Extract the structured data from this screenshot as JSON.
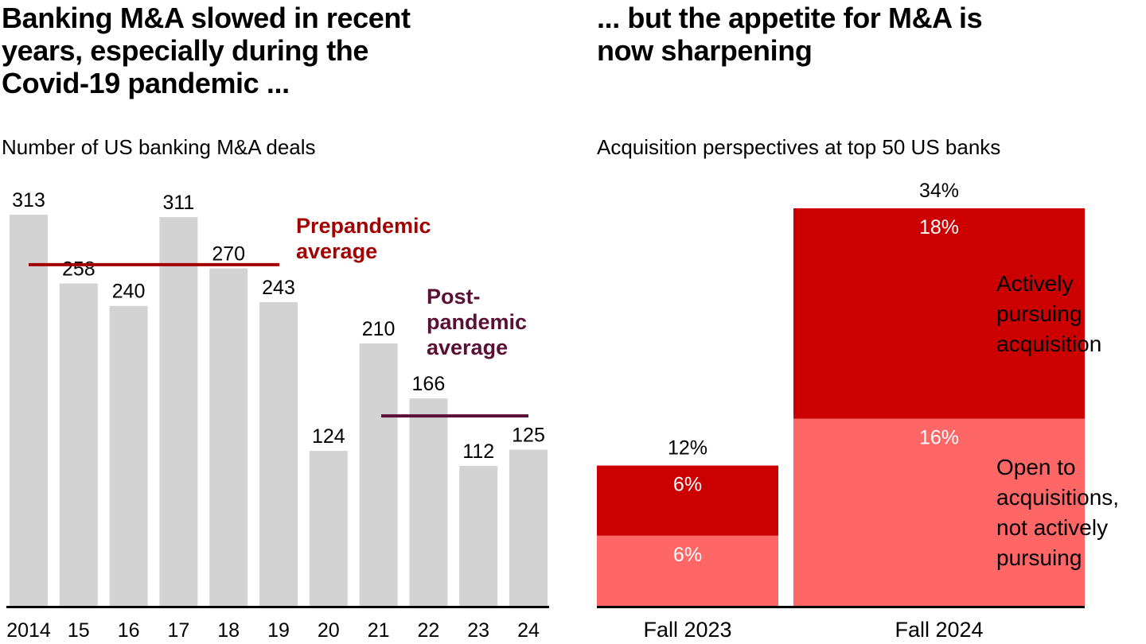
{
  "left": {
    "title": "Banking M&A slowed in recent years, especially during the Covid-19 pandemic ...",
    "title_lines": [
      "Banking M&A slowed in recent",
      "years, especially during the",
      "Covid-19 pandemic ..."
    ],
    "subtitle": "Number of US banking M&A deals"
  },
  "right": {
    "title": "... but the appetite for M&A is now sharpening",
    "title_lines": [
      "... but the appetite for M&A is",
      "now sharpening"
    ],
    "subtitle": "Acquisition perspectives at top 50 US banks"
  },
  "colors": {
    "bar_gray": "#d3d3d3",
    "prepandemic": "#a30000",
    "postpandemic": "#5a1034",
    "active": "#cc0000",
    "open": "#ff6666",
    "axis": "#000000",
    "label_white": "#ffffff"
  },
  "chart_data": [
    {
      "type": "bar",
      "title": "Number of US banking M&A deals",
      "categories": [
        "2014",
        "15",
        "16",
        "17",
        "18",
        "19",
        "20",
        "21",
        "22",
        "23",
        "24"
      ],
      "values": [
        313,
        258,
        240,
        311,
        270,
        243,
        124,
        210,
        166,
        112,
        125
      ],
      "xlabel": "",
      "ylabel": "",
      "ylim": [
        0,
        313
      ],
      "grid": false,
      "reference_lines": [
        {
          "name": "Prepandemic average",
          "label_lines": [
            "Prepandemic",
            "average"
          ],
          "value": 273,
          "from_index": 0,
          "to_index": 5
        },
        {
          "name": "Post-pandemic average",
          "label_lines": [
            "Post-",
            "pandemic",
            "average"
          ],
          "value": 152,
          "from_index": 7,
          "to_index": 10
        }
      ]
    },
    {
      "type": "bar",
      "stacked": true,
      "title": "Acquisition perspectives at top 50 US banks",
      "categories": [
        "Fall 2023",
        "Fall 2024"
      ],
      "series": [
        {
          "name": "Open to acquisitions, not actively pursuing",
          "label_lines": [
            "Open to",
            "acquisitions,",
            "not actively",
            "pursuing"
          ],
          "values": [
            6,
            16
          ],
          "unit": "%"
        },
        {
          "name": "Actively pursuing acquisition",
          "label_lines": [
            "Actively",
            "pursuing",
            "acquisition"
          ],
          "values": [
            6,
            18
          ],
          "unit": "%"
        }
      ],
      "totals": [
        12,
        34
      ],
      "legend": "right",
      "ylim": [
        0,
        34
      ],
      "grid": false
    }
  ]
}
